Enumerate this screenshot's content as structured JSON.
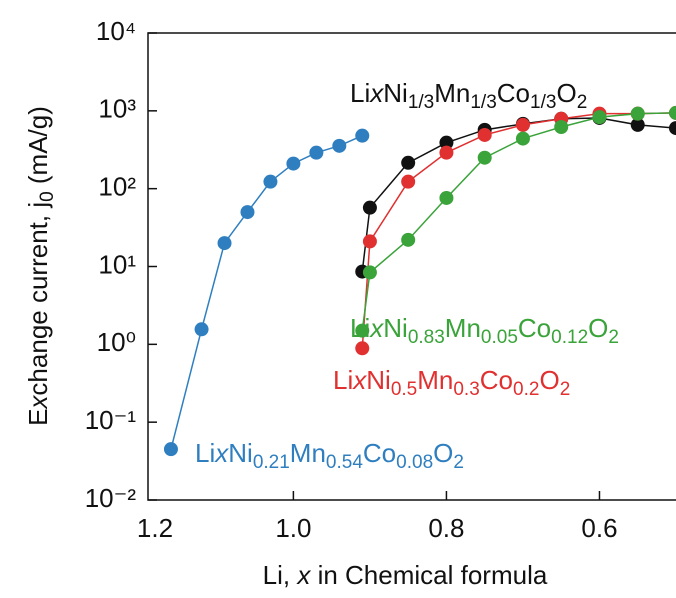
{
  "chart_data": {
    "type": "line",
    "x_label": "Li, x in Chemical formula",
    "y_label": "Exchange current, j0 (mA/g)",
    "yscale": "log",
    "xlim": [
      1.19,
      0.5
    ],
    "ylim": [
      0.01,
      10000
    ],
    "xticks": [
      {
        "value": 1.2,
        "label": "1.2"
      },
      {
        "value": 1.0,
        "label": "1.0"
      },
      {
        "value": 0.8,
        "label": "0.8"
      },
      {
        "value": 0.6,
        "label": "0.6"
      }
    ],
    "yticks": [
      {
        "value": 0.01,
        "label": "10⁻²"
      },
      {
        "value": 0.1,
        "label": "10⁻¹"
      },
      {
        "value": 1,
        "label": "10⁰"
      },
      {
        "value": 10,
        "label": "10¹"
      },
      {
        "value": 100,
        "label": "10²"
      },
      {
        "value": 1000,
        "label": "10³"
      },
      {
        "value": 10000,
        "label": "10⁴"
      }
    ],
    "series": [
      {
        "name": "LixNi0.21Mn0.54Co0.08O2",
        "color": "#2f7fc0",
        "x": [
          1.16,
          1.12,
          1.09,
          1.06,
          1.03,
          1.0,
          0.97,
          0.94,
          0.91
        ],
        "values": [
          0.045,
          1.56,
          20,
          50,
          123,
          210,
          290,
          355,
          480
        ]
      },
      {
        "name": "LixNi1/3Mn1/3Co1/3O2",
        "color": "#111111",
        "x": [
          0.91,
          0.9,
          0.85,
          0.8,
          0.75,
          0.7,
          0.65,
          0.6,
          0.55,
          0.5
        ],
        "values": [
          8.6,
          57,
          215,
          390,
          570,
          680,
          790,
          810,
          660,
          600
        ]
      },
      {
        "name": "LixNi0.5Mn0.3Co0.2O2",
        "color": "#e03030",
        "x": [
          0.91,
          0.9,
          0.85,
          0.8,
          0.75,
          0.7,
          0.65,
          0.6,
          0.55,
          0.5
        ],
        "values": [
          0.89,
          21,
          123,
          290,
          490,
          660,
          790,
          920,
          920,
          940
        ]
      },
      {
        "name": "LixNi0.83Mn0.05Co0.12O2",
        "color": "#3aa33a",
        "x": [
          0.91,
          0.9,
          0.85,
          0.8,
          0.75,
          0.7,
          0.65,
          0.6,
          0.55,
          0.5
        ],
        "values": [
          1.5,
          8.4,
          22,
          76,
          250,
          440,
          620,
          830,
          920,
          940
        ]
      }
    ]
  }
}
